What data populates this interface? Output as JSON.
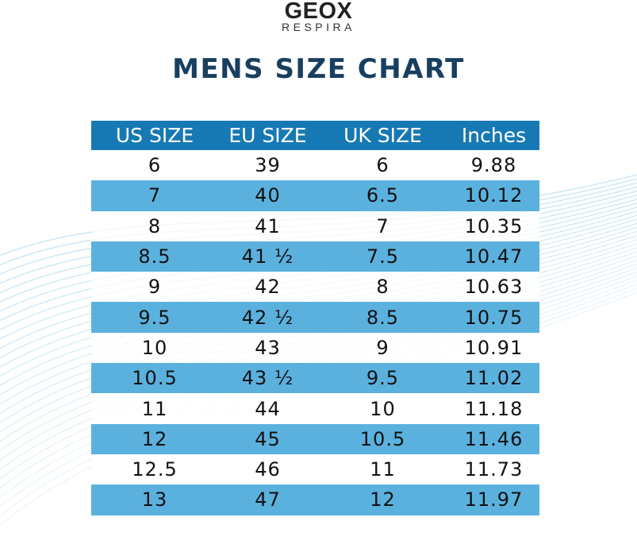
{
  "brand": {
    "name": "GEOX",
    "tagline": "RESPIRA"
  },
  "title": "MENS SIZE CHART",
  "colors": {
    "title": "#173f5f",
    "header_band": "#1779b3",
    "alt_row_band": "#5bb1de",
    "wave_lines": "#9fcfe9"
  },
  "table": {
    "headers": [
      "US SIZE",
      "EU SIZE",
      "UK SIZE",
      "Inches"
    ],
    "rows": [
      [
        "6",
        "39",
        "6",
        "9.88"
      ],
      [
        "7",
        "40",
        "6.5",
        "10.12"
      ],
      [
        "8",
        "41",
        "7",
        "10.35"
      ],
      [
        "8.5",
        "41 ½",
        "7.5",
        "10.47"
      ],
      [
        "9",
        "42",
        "8",
        "10.63"
      ],
      [
        "9.5",
        "42 ½",
        "8.5",
        "10.75"
      ],
      [
        "10",
        "43",
        "9",
        "10.91"
      ],
      [
        "10.5",
        "43 ½",
        "9.5",
        "11.02"
      ],
      [
        "11",
        "44",
        "10",
        "11.18"
      ],
      [
        "12",
        "45",
        "10.5",
        "11.46"
      ],
      [
        "12.5",
        "46",
        "11",
        "11.73"
      ],
      [
        "13",
        "47",
        "12",
        "11.97"
      ]
    ]
  }
}
